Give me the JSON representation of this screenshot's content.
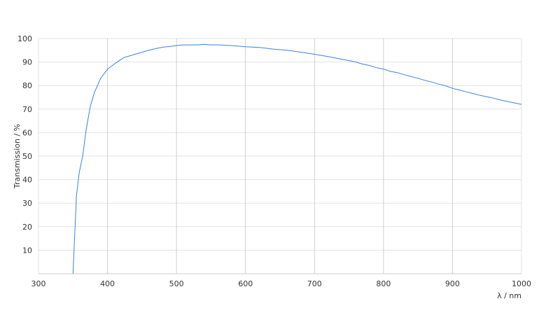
{
  "chart_data": {
    "type": "line",
    "title": "",
    "xlabel": "λ / nm",
    "ylabel": "Transmission / %",
    "xlim": [
      300,
      1000
    ],
    "ylim": [
      0,
      100
    ],
    "xticks": [
      300,
      400,
      500,
      600,
      700,
      800,
      900,
      1000
    ],
    "yticks": [
      10,
      20,
      30,
      40,
      50,
      60,
      70,
      80,
      90,
      100
    ],
    "grid": true,
    "line_color": "#3d7fe6",
    "series": [
      {
        "x": [
          350,
          355,
          359,
          364,
          369,
          375,
          381,
          390,
          400,
          412,
          424,
          440,
          457,
          470,
          480,
          490,
          500,
          510,
          520,
          530,
          540,
          550,
          560,
          580,
          600,
          620,
          640,
          660,
          680,
          700,
          720,
          740,
          760,
          770,
          780,
          790,
          800,
          810,
          820,
          830,
          840,
          850,
          860,
          870,
          880,
          890,
          900,
          910,
          920,
          930,
          940,
          950,
          960,
          970,
          980,
          990,
          1000
        ],
        "y": [
          0,
          33,
          43,
          50,
          61,
          71,
          77,
          83,
          87,
          89.6,
          91.9,
          93.3,
          94.8,
          95.7,
          96.3,
          96.6,
          97,
          97.3,
          97.3,
          97.3,
          97.5,
          97.3,
          97.3,
          97,
          96.5,
          96.2,
          95.5,
          95,
          94.2,
          93.3,
          92.3,
          91.2,
          90,
          89.1,
          88.5,
          87.6,
          87,
          86,
          85.5,
          84.6,
          83.8,
          83.1,
          82.2,
          81.5,
          80.6,
          79.9,
          78.8,
          78.1,
          77.3,
          76.6,
          75.8,
          75.2,
          74.6,
          73.8,
          73.2,
          72.6,
          72
        ]
      }
    ]
  }
}
